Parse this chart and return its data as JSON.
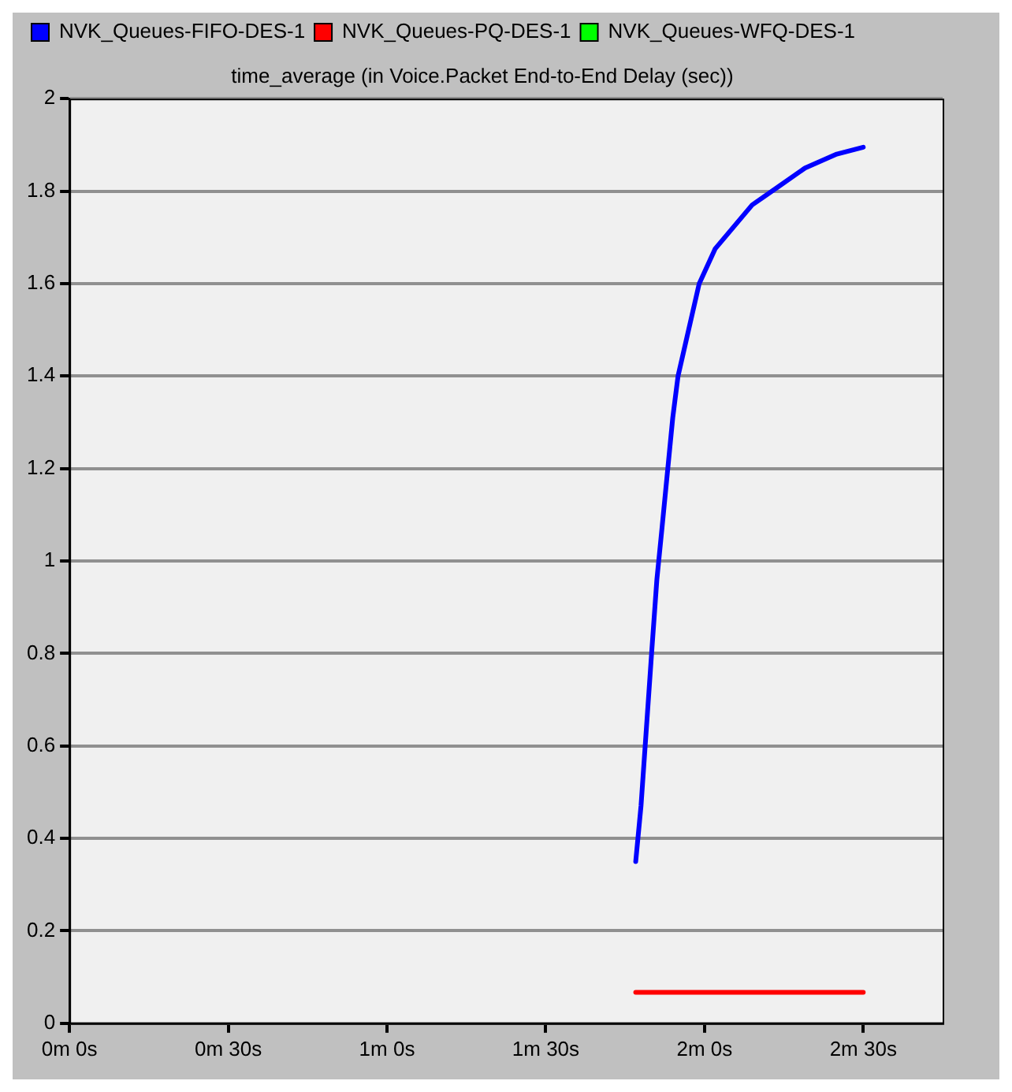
{
  "chart_data": {
    "type": "line",
    "title": "time_average (in Voice.Packet End-to-End Delay (sec))",
    "categories": [
      "0m 0s",
      null,
      null,
      null,
      null,
      null,
      null,
      null,
      null,
      null,
      null,
      null,
      null,
      null,
      null,
      null,
      null,
      null,
      null,
      null,
      null,
      null,
      null,
      null,
      null,
      null,
      null,
      null,
      null,
      null,
      "0m 30s",
      null,
      null,
      null,
      null,
      null,
      null,
      null,
      null,
      null,
      null,
      null,
      null,
      null,
      null,
      null,
      null,
      null,
      null,
      null,
      null,
      null,
      null,
      null,
      null,
      null,
      null,
      null,
      null,
      null,
      "1m 0s",
      null,
      null,
      null,
      null,
      null,
      null,
      null,
      null,
      null,
      null,
      null,
      null,
      null,
      null,
      null,
      null,
      null,
      null,
      null,
      null,
      null,
      null,
      null,
      null,
      null,
      null,
      null,
      null,
      null,
      "1m 30s",
      null,
      null,
      null,
      null,
      null,
      null,
      null,
      null,
      null,
      null,
      null,
      null,
      null,
      null,
      null,
      null,
      null,
      null,
      null,
      null,
      null,
      null,
      null,
      null,
      null,
      null,
      null,
      null,
      null,
      "2m 0s",
      null,
      null,
      null,
      null,
      null,
      null,
      null,
      null,
      null,
      null,
      null,
      null,
      null,
      null,
      null,
      null,
      null,
      null,
      null,
      null,
      null,
      null,
      null,
      null,
      null,
      null,
      null,
      null,
      null,
      "2m 30s",
      null,
      null,
      null,
      null,
      null,
      null,
      null,
      null,
      null,
      null,
      null,
      null,
      null,
      null,
      null
    ],
    "ylim": [
      0,
      2
    ],
    "yticks": [
      0,
      0.2,
      0.4,
      0.6,
      0.8,
      1,
      1.2,
      1.4,
      1.6,
      1.8,
      2
    ],
    "grid": "y",
    "legend": "top left",
    "marker": "none",
    "line_style": "solid",
    "series": [
      {
        "name": "NVK_Queues-FIFO-DES-1",
        "color": "#0000ff",
        "values": [
          null,
          null,
          null,
          null,
          null,
          null,
          null,
          null,
          null,
          null,
          null,
          null,
          null,
          null,
          null,
          null,
          null,
          null,
          null,
          null,
          null,
          null,
          null,
          null,
          null,
          null,
          null,
          null,
          null,
          null,
          null,
          null,
          null,
          null,
          null,
          null,
          null,
          null,
          null,
          null,
          null,
          null,
          null,
          null,
          null,
          null,
          null,
          null,
          null,
          null,
          null,
          null,
          null,
          null,
          null,
          null,
          null,
          null,
          null,
          null,
          null,
          null,
          null,
          null,
          null,
          null,
          null,
          null,
          null,
          null,
          null,
          null,
          null,
          null,
          null,
          null,
          null,
          null,
          null,
          null,
          null,
          null,
          null,
          null,
          null,
          null,
          null,
          null,
          null,
          null,
          null,
          null,
          null,
          null,
          null,
          null,
          null,
          null,
          null,
          null,
          null,
          null,
          null,
          null,
          null,
          null,
          null,
          0.35,
          0.47,
          null,
          0.8,
          0.96,
          1.075,
          null,
          1.31,
          1.4,
          null,
          null,
          null,
          1.6,
          null,
          null,
          1.675,
          null,
          null,
          null,
          null,
          null,
          null,
          1.77,
          null,
          null,
          null,
          null,
          1.81,
          null,
          null,
          null,
          null,
          1.85,
          null,
          null,
          null,
          null,
          null,
          1.88,
          null,
          null,
          null,
          null,
          1.895,
          null,
          null,
          null,
          null,
          null,
          null,
          null,
          null,
          null,
          null,
          null,
          null,
          null,
          null,
          null
        ]
      },
      {
        "name": "NVK_Queues-PQ-DES-1",
        "color": "#ff0000",
        "values": [
          null,
          null,
          null,
          null,
          null,
          null,
          null,
          null,
          null,
          null,
          null,
          null,
          null,
          null,
          null,
          null,
          null,
          null,
          null,
          null,
          null,
          null,
          null,
          null,
          null,
          null,
          null,
          null,
          null,
          null,
          null,
          null,
          null,
          null,
          null,
          null,
          null,
          null,
          null,
          null,
          null,
          null,
          null,
          null,
          null,
          null,
          null,
          null,
          null,
          null,
          null,
          null,
          null,
          null,
          null,
          null,
          null,
          null,
          null,
          null,
          null,
          null,
          null,
          null,
          null,
          null,
          null,
          null,
          null,
          null,
          null,
          null,
          null,
          null,
          null,
          null,
          null,
          null,
          null,
          null,
          null,
          null,
          null,
          null,
          null,
          null,
          null,
          null,
          null,
          null,
          null,
          null,
          null,
          null,
          null,
          null,
          null,
          null,
          null,
          null,
          null,
          null,
          null,
          null,
          null,
          null,
          null,
          0.067,
          0.067,
          0.067,
          0.067,
          0.067,
          0.067,
          0.067,
          0.067,
          0.067,
          0.067,
          0.067,
          0.067,
          0.067,
          0.067,
          0.067,
          0.067,
          0.067,
          0.067,
          0.067,
          0.067,
          0.067,
          0.067,
          0.067,
          0.067,
          0.067,
          0.067,
          0.067,
          0.067,
          0.067,
          0.067,
          0.067,
          0.067,
          0.067,
          0.067,
          0.067,
          0.067,
          0.067,
          0.067,
          0.067,
          0.067,
          0.067,
          0.067,
          0.067,
          0.067,
          null,
          null,
          null,
          null,
          null,
          null,
          null,
          null,
          null,
          null,
          null,
          null,
          null,
          null,
          null
        ]
      },
      {
        "name": "NVK_Queues-WFQ-DES-1",
        "color": "#00ff00",
        "values": [
          null,
          null,
          null,
          null,
          null,
          null,
          null,
          null,
          null,
          null,
          null,
          null,
          null,
          null,
          null,
          null,
          null,
          null,
          null,
          null,
          null,
          null,
          null,
          null,
          null,
          null,
          null,
          null,
          null,
          null,
          null,
          null,
          null,
          null,
          null,
          null,
          null,
          null,
          null,
          null,
          null,
          null,
          null,
          null,
          null,
          null,
          null,
          null,
          null,
          null,
          null,
          null,
          null,
          null,
          null,
          null,
          null,
          null,
          null,
          null,
          null,
          null,
          null,
          null,
          null,
          null,
          null,
          null,
          null,
          null,
          null,
          null,
          null,
          null,
          null,
          null,
          null,
          null,
          null,
          null,
          null,
          null,
          null,
          null,
          null,
          null,
          null,
          null,
          null,
          null,
          null,
          null,
          null,
          null,
          null,
          null,
          null,
          null,
          null,
          null,
          null,
          null,
          null,
          null,
          null,
          null,
          null,
          null,
          null,
          null,
          null,
          null,
          null,
          null,
          null,
          null,
          null,
          null,
          null,
          null,
          null,
          null,
          null,
          null,
          null,
          null,
          null,
          null,
          null,
          null,
          null,
          null,
          null,
          null,
          null,
          null,
          null,
          null,
          null,
          null,
          null,
          null,
          null,
          null,
          null,
          null,
          null,
          null,
          null,
          null,
          null,
          null,
          null,
          null,
          null,
          null,
          null,
          null,
          null,
          null,
          null,
          null,
          null,
          null,
          null,
          null
        ]
      }
    ]
  }
}
